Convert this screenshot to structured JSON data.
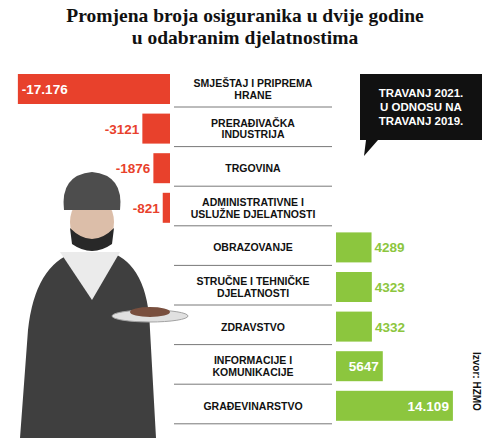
{
  "chart_data": {
    "type": "bar",
    "orientation": "horizontal",
    "title": "Promjena broja osiguranika u dvije godine u odabranim djelatnostima",
    "annotation": "TRAVANJ 2021. U ODNOSU NA TRAVANJ 2019.",
    "source": "Izvor: HZMO",
    "categories": [
      "SMJEŠTAJ I PRIPREMA HRANE",
      "PRERAĐIVAČKA INDUSTRIJA",
      "TRGOVINA",
      "ADMINISTRATIVNE I USLUŽNE DJELATNOSTI",
      "OBRAZOVANJE",
      "STRUČNE I TEHNIČKE DJELATNOSTI",
      "ZDRAVSTVO",
      "INFORMACIJE I KOMUNIKACIJE",
      "GRAĐEVINARSTVO"
    ],
    "values": [
      -17176,
      -3121,
      -1876,
      -821,
      4289,
      4323,
      4332,
      5647,
      14109
    ],
    "value_labels": [
      "-17.176",
      "-3121",
      "-1876",
      "-821",
      "4289",
      "4323",
      "4332",
      "5647",
      "14.109"
    ],
    "colors": [
      "#e8412c",
      "#e8412c",
      "#e8412c",
      "#e8412c",
      "#8cc63e",
      "#8cc63e",
      "#8cc63e",
      "#8cc63e",
      "#8cc63e"
    ],
    "xlim": [
      -17500,
      17500
    ],
    "tick_labels": false,
    "data_labels": true,
    "grid": false
  }
}
